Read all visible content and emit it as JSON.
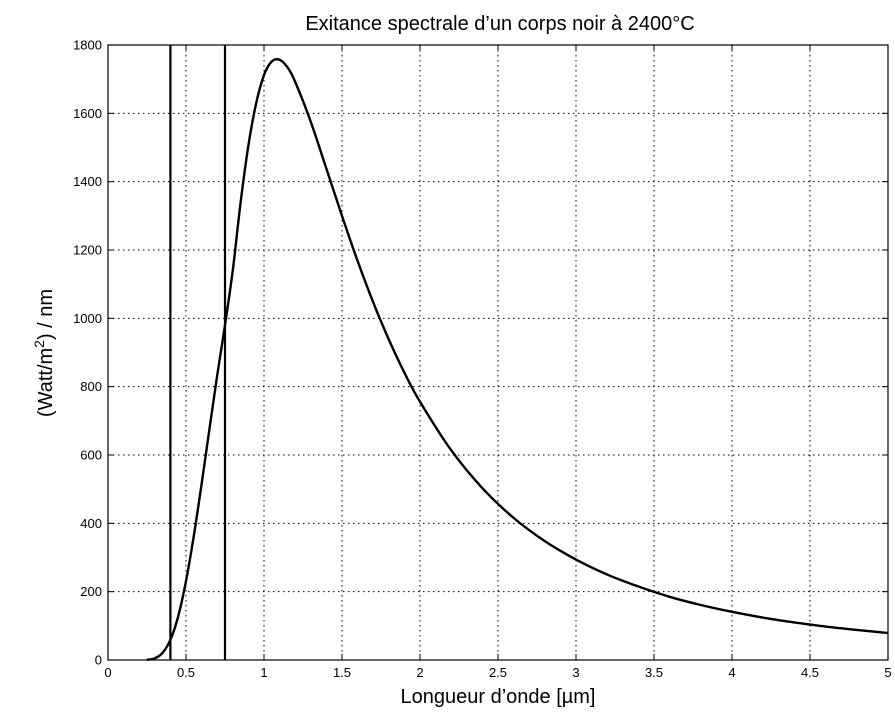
{
  "chart_data": {
    "type": "line",
    "title": "Exitance spectrale d’un corps noir à 2400°C",
    "xlabel": "Longueur d’onde [µm]",
    "ylabel": {
      "pre": "(Watt/m",
      "sup": "2",
      "post": ") / nm"
    },
    "xlim": [
      0,
      5
    ],
    "ylim": [
      0,
      1800
    ],
    "xticks": [
      0,
      0.5,
      1,
      1.5,
      2,
      2.5,
      3,
      3.5,
      4,
      4.5,
      5
    ],
    "xtick_labels": [
      "0",
      "0.5",
      "1",
      "1.5",
      "2",
      "2.5",
      "3",
      "3.5",
      "4",
      "4.5",
      "5"
    ],
    "yticks": [
      0,
      200,
      400,
      600,
      800,
      1000,
      1200,
      1400,
      1600,
      1800
    ],
    "ytick_labels": [
      "0",
      "200",
      "400",
      "600",
      "800",
      "1000",
      "1200",
      "1400",
      "1600",
      "1800"
    ],
    "grid": true,
    "line_color": "#000000",
    "vertical_lines": [
      0.4,
      0.75
    ],
    "series": [
      {
        "x": [
          0.25,
          0.3,
          0.35,
          0.4,
          0.45,
          0.5,
          0.55,
          0.6,
          0.65,
          0.7,
          0.75,
          0.8,
          0.85,
          0.9,
          0.95,
          1.0,
          1.05,
          1.1,
          1.15,
          1.2,
          1.3,
          1.4,
          1.5,
          1.6,
          1.7,
          1.8,
          1.9,
          2.0,
          2.2,
          2.4,
          2.6,
          2.8,
          3.0,
          3.2,
          3.4,
          3.6,
          3.8,
          4.0,
          4.2,
          4.4,
          4.6,
          4.8,
          5.0
        ],
        "y": [
          0.6,
          5,
          21,
          59,
          128,
          231,
          363,
          515,
          675,
          833,
          980,
          1141,
          1339,
          1506,
          1630,
          1712,
          1752,
          1757,
          1735,
          1692,
          1575,
          1438,
          1300,
          1168,
          1047,
          938,
          841,
          756,
          614,
          503,
          416,
          348,
          294,
          250,
          215,
          185,
          161,
          141,
          124,
          110,
          98,
          88,
          79
        ]
      }
    ]
  }
}
